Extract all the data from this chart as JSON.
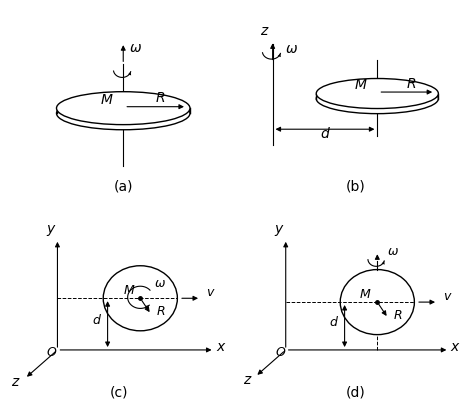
{
  "fig_width": 4.74,
  "fig_height": 4.16,
  "dpi": 100,
  "background": "#ffffff",
  "label_a": "(a)",
  "label_b": "(b)",
  "label_c": "(c)",
  "label_d": "(d)"
}
